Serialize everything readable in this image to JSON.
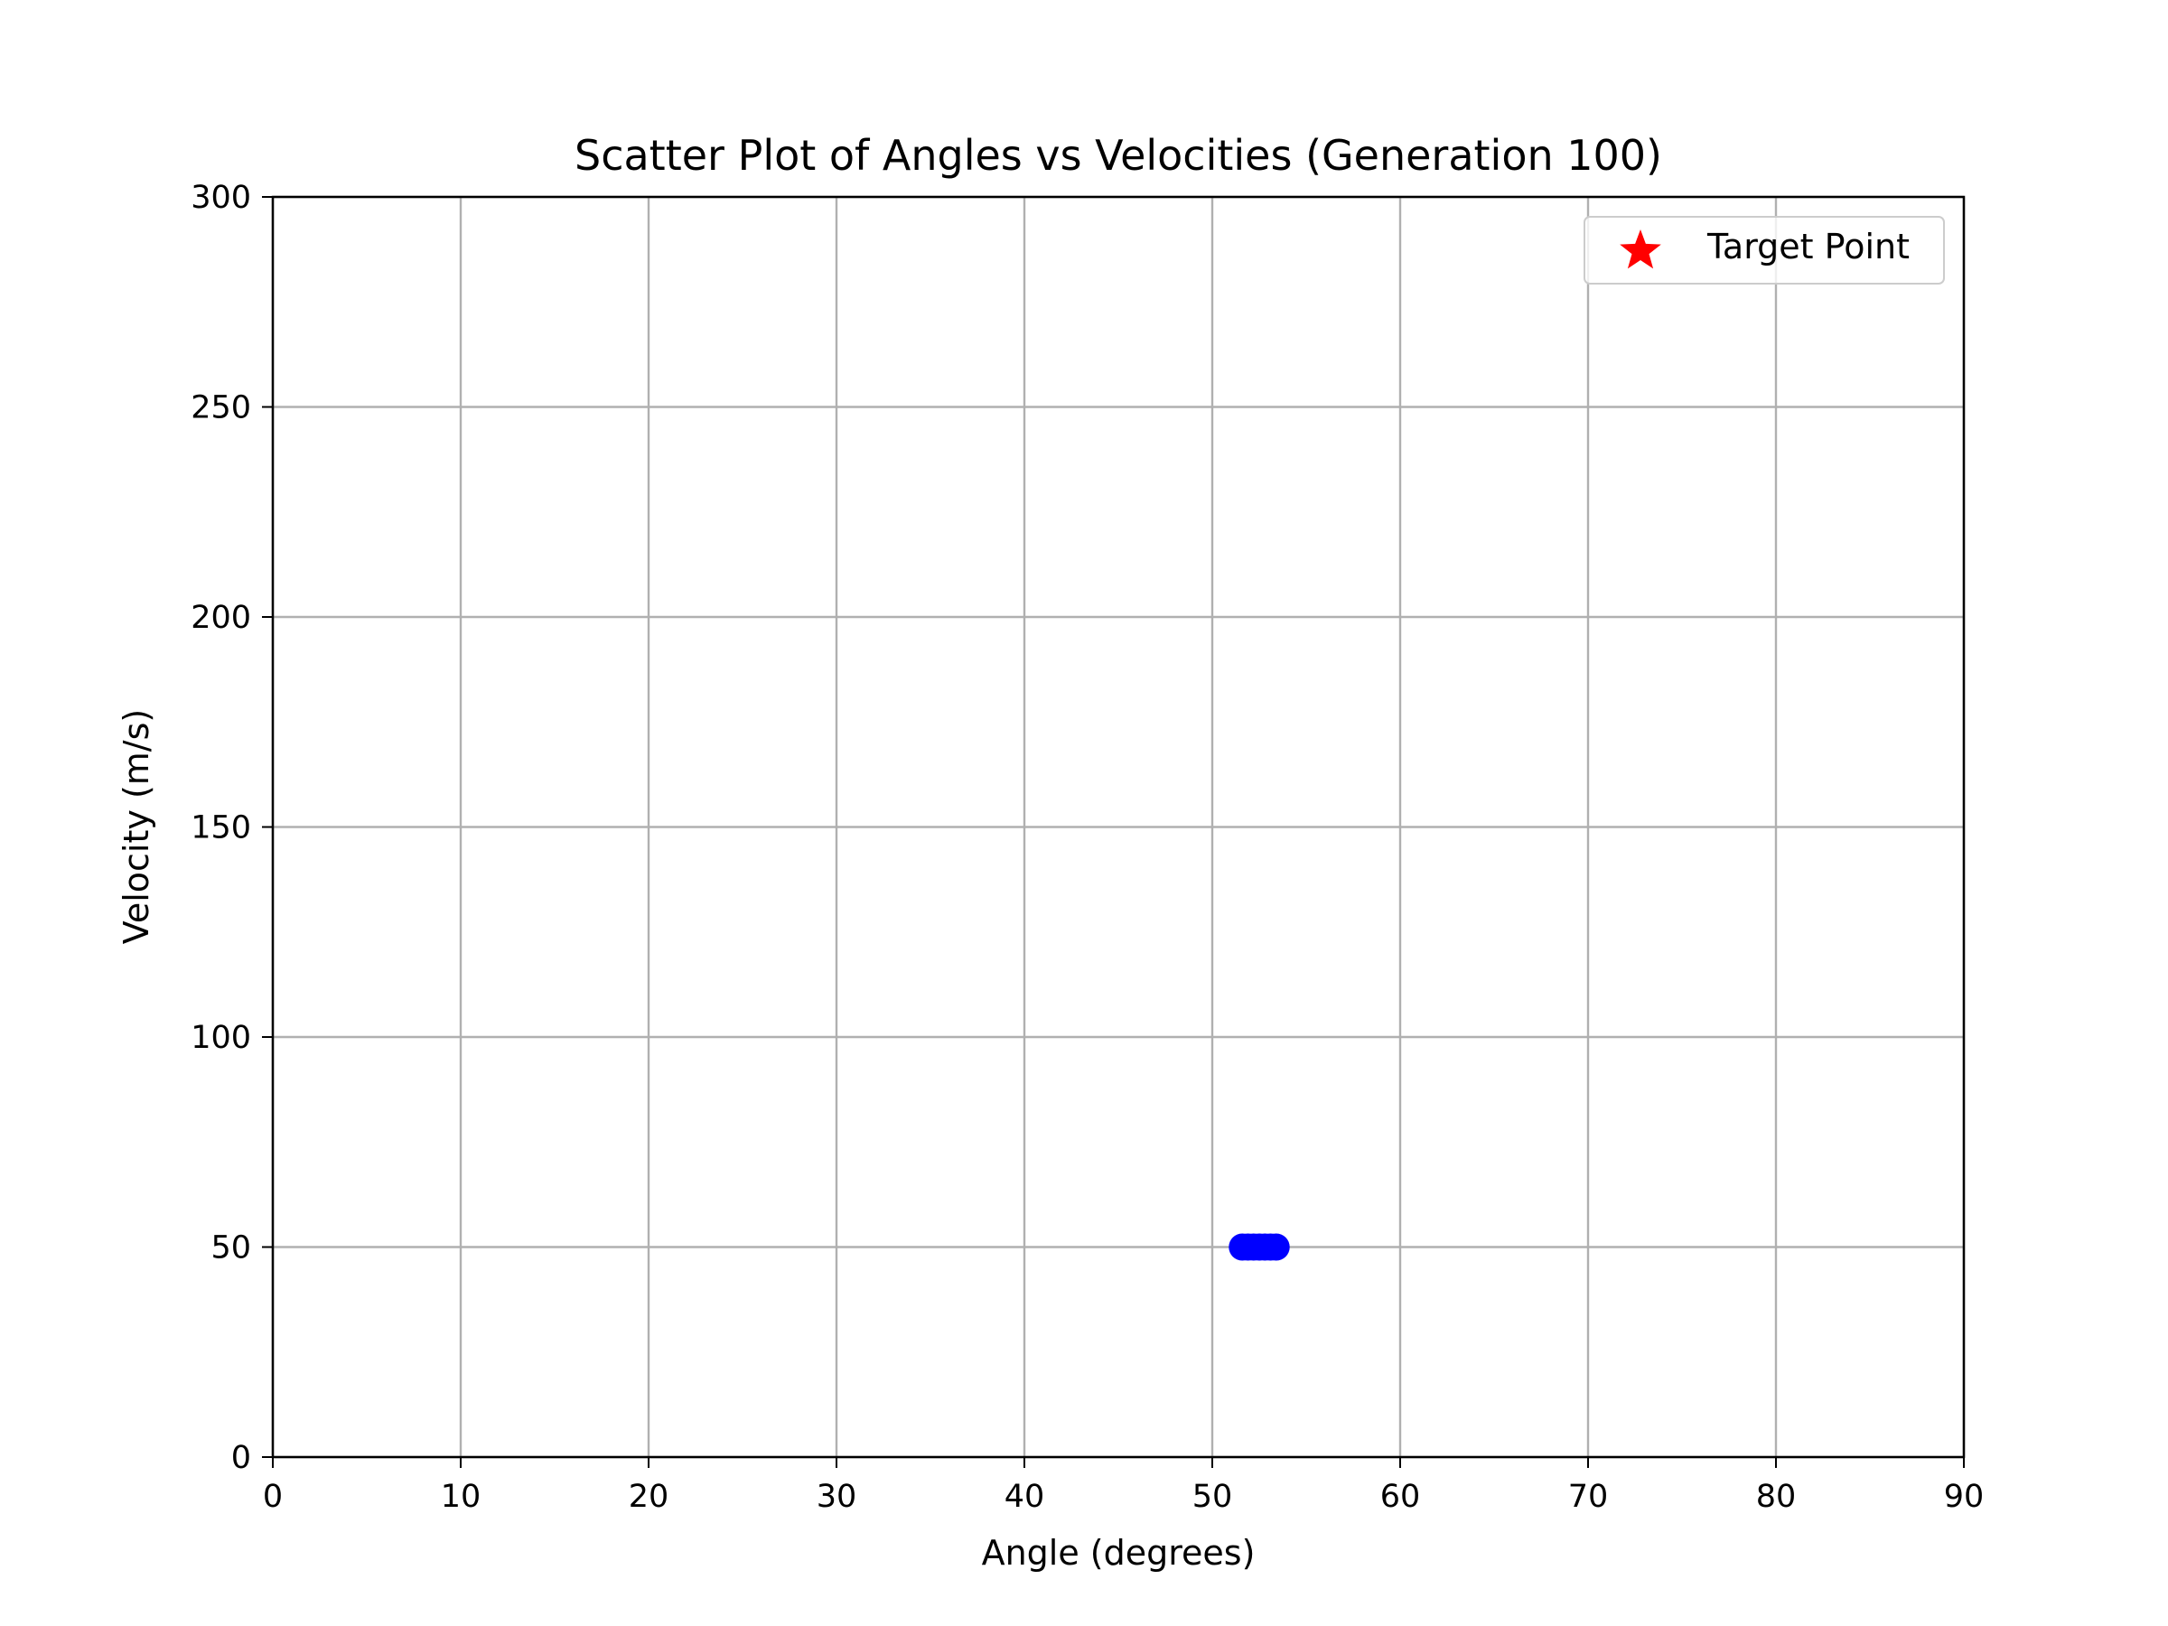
{
  "chart_data": {
    "type": "scatter",
    "title": "Scatter Plot of Angles vs Velocities (Generation 100)",
    "xlabel": "Angle (degrees)",
    "ylabel": "Velocity (m/s)",
    "xlim": [
      0,
      90
    ],
    "ylim": [
      0,
      300
    ],
    "xticks": [
      0,
      10,
      20,
      30,
      40,
      50,
      60,
      70,
      80,
      90
    ],
    "yticks": [
      0,
      50,
      100,
      150,
      200,
      250,
      300
    ],
    "grid": true,
    "legend_position": "top-right",
    "series": [
      {
        "name": "",
        "color": "#0000ff",
        "marker": "circle",
        "points": [
          {
            "x": 51.6,
            "y": 50.0
          },
          {
            "x": 51.9,
            "y": 50.0
          },
          {
            "x": 52.2,
            "y": 50.0
          },
          {
            "x": 52.5,
            "y": 50.0
          },
          {
            "x": 52.8,
            "y": 50.0
          },
          {
            "x": 53.1,
            "y": 50.0
          },
          {
            "x": 53.4,
            "y": 50.0
          }
        ]
      },
      {
        "name": "Target Point",
        "color": "#ff0000",
        "marker": "star",
        "points": []
      }
    ]
  }
}
